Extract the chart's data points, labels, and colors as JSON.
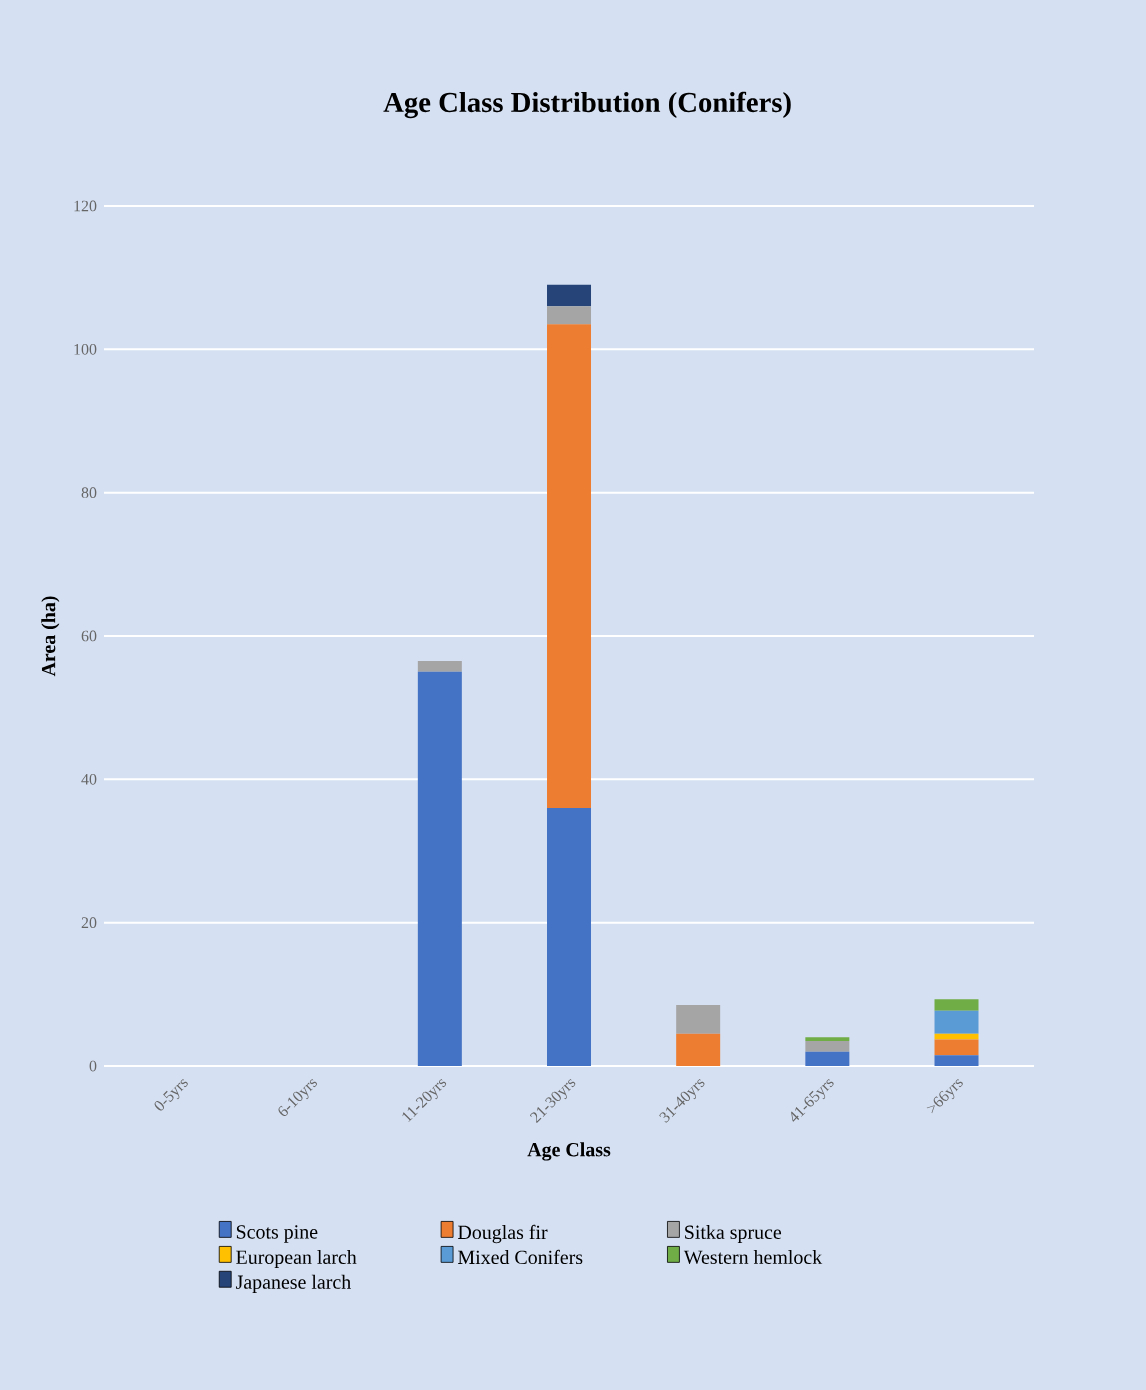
{
  "chart_data": {
    "type": "bar",
    "title": "Age Class Distribution (Conifers)",
    "xlabel": "Age Class",
    "ylabel": "Area (ha)",
    "categories": [
      "0-5yrs",
      "6-10yrs",
      "11-20yrs",
      "21-30yrs",
      "31-40yrs",
      "41-65yrs",
      ">66yrs"
    ],
    "series": [
      {
        "name": "Scots pine",
        "color": "#4472c4",
        "values": [
          0,
          0,
          55,
          36,
          0,
          2,
          1.5
        ]
      },
      {
        "name": "Douglas fir",
        "color": "#ed7d31",
        "values": [
          0,
          0,
          0,
          67.5,
          4.5,
          0,
          2.2
        ]
      },
      {
        "name": "Sitka spruce",
        "color": "#a5a5a5",
        "values": [
          0,
          0,
          1.5,
          2.5,
          4,
          1.5,
          0
        ]
      },
      {
        "name": "European larch",
        "color": "#ffc000",
        "values": [
          0,
          0,
          0,
          0,
          0,
          0,
          0.8
        ]
      },
      {
        "name": "Mixed Conifers",
        "color": "#5b9bd5",
        "values": [
          0,
          0,
          0,
          0,
          0,
          0,
          3.2
        ]
      },
      {
        "name": "Western hemlock",
        "color": "#70ad47",
        "values": [
          0,
          0,
          0,
          0,
          0,
          0.5,
          1.6
        ]
      },
      {
        "name": "Japanese larch",
        "color": "#264478",
        "values": [
          0,
          0,
          0,
          3,
          0,
          0,
          0
        ]
      }
    ],
    "stacked": true,
    "ylim": [
      0,
      120
    ],
    "yticks": [
      0,
      20,
      40,
      60,
      80,
      100,
      120
    ],
    "grid": "y",
    "legend": "bottom"
  }
}
